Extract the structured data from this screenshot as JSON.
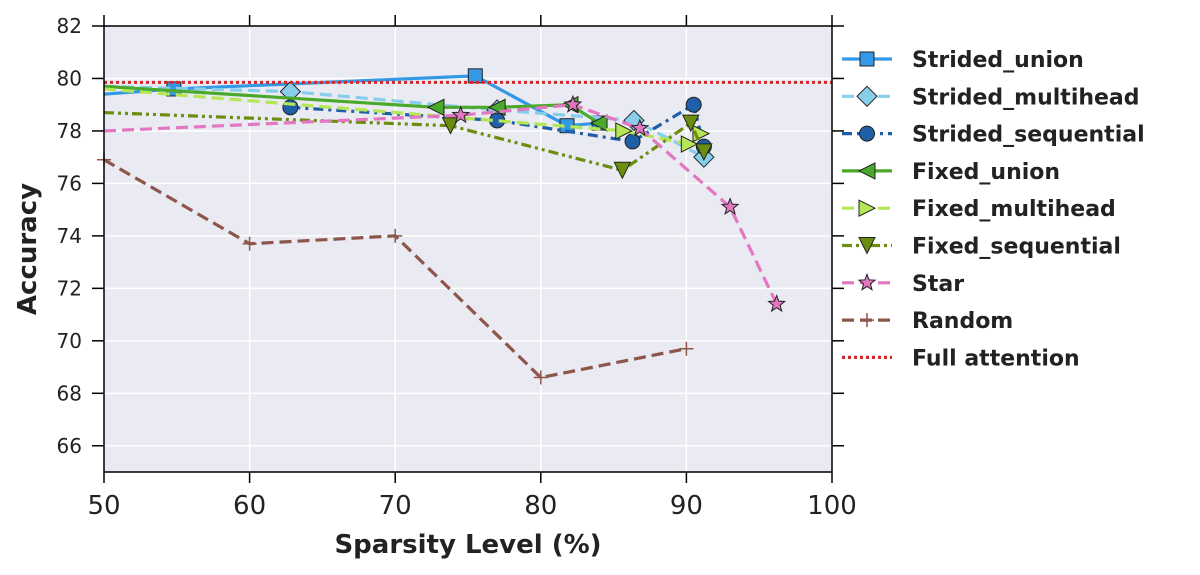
{
  "chart_data": {
    "type": "line",
    "title": "",
    "xlabel": "Sparsity Level (%)",
    "ylabel": "Accuracy",
    "xlim": [
      50,
      100
    ],
    "ylim": [
      65,
      82
    ],
    "xticks": [
      50,
      60,
      70,
      80,
      90,
      100
    ],
    "yticks": [
      66,
      68,
      70,
      72,
      74,
      76,
      78,
      80,
      82
    ],
    "grid": true,
    "legend_position": "right, outside plot",
    "series": [
      {
        "name": "Strided_union",
        "color": "#3399e6",
        "dash": "solid",
        "marker": "square",
        "marker_color": "#3399e6",
        "x": [
          50,
          54.8,
          75.5,
          81.8,
          84.0
        ],
        "y": [
          79.4,
          79.6,
          80.1,
          78.2,
          78.3
        ]
      },
      {
        "name": "Strided_multihead",
        "color": "#87ceeb",
        "dash": "dashed",
        "marker": "diamond",
        "marker_color": "#87ceeb",
        "x": [
          50,
          62.8,
          77.0,
          86.4,
          91.2
        ],
        "y": [
          79.7,
          79.5,
          78.8,
          78.4,
          77.0
        ]
      },
      {
        "name": "Strided_sequential",
        "color": "#1f5fa8",
        "dash": "dashdot",
        "marker": "circle",
        "marker_color": "#1f5fa8",
        "x": [
          62.8,
          77.0,
          86.3,
          90.5,
          91.2
        ],
        "y": [
          78.9,
          78.4,
          77.6,
          79.0,
          77.4
        ]
      },
      {
        "name": "Fixed_union",
        "color": "#4aa82a",
        "dash": "solid",
        "marker": "triangle-left",
        "marker_color": "#4aa82a",
        "x": [
          50,
          72.8,
          77.0,
          82.0,
          84.0
        ],
        "y": [
          79.7,
          78.9,
          78.9,
          79.0,
          78.3
        ]
      },
      {
        "name": "Fixed_multihead",
        "color": "#b5e655",
        "dash": "dashed",
        "marker": "triangle-right",
        "marker_color": "#b5e655",
        "x": [
          50,
          85.7,
          90.2,
          91.0
        ],
        "y": [
          79.6,
          78.0,
          77.5,
          77.9
        ]
      },
      {
        "name": "Fixed_sequential",
        "color": "#6b8e0f",
        "dash": "dashdotdot",
        "marker": "triangle-down",
        "marker_color": "#6b8e0f",
        "x": [
          50,
          73.8,
          85.6,
          90.3,
          91.2
        ],
        "y": [
          78.7,
          78.2,
          76.5,
          78.3,
          77.2
        ]
      },
      {
        "name": "Star",
        "color": "#e377c2",
        "dash": "dashed",
        "marker": "star",
        "marker_color": "#e377c2",
        "x": [
          50,
          74.5,
          82.2,
          86.8,
          93.0,
          96.2
        ],
        "y": [
          78.0,
          78.6,
          79.0,
          78.1,
          75.1,
          71.4
        ]
      },
      {
        "name": "Random",
        "color": "#8c564b",
        "dash": "dashed",
        "marker": "plus",
        "marker_color": "#8c564b",
        "x": [
          50,
          60,
          70,
          80,
          90
        ],
        "y": [
          76.9,
          73.7,
          74.0,
          68.6,
          69.7
        ]
      },
      {
        "name": "Full attention",
        "color": "#d62728",
        "dash": "dotted",
        "marker": "none",
        "marker_color": "#d62728",
        "x": [
          50,
          100
        ],
        "y": [
          79.85,
          79.85
        ]
      }
    ]
  }
}
